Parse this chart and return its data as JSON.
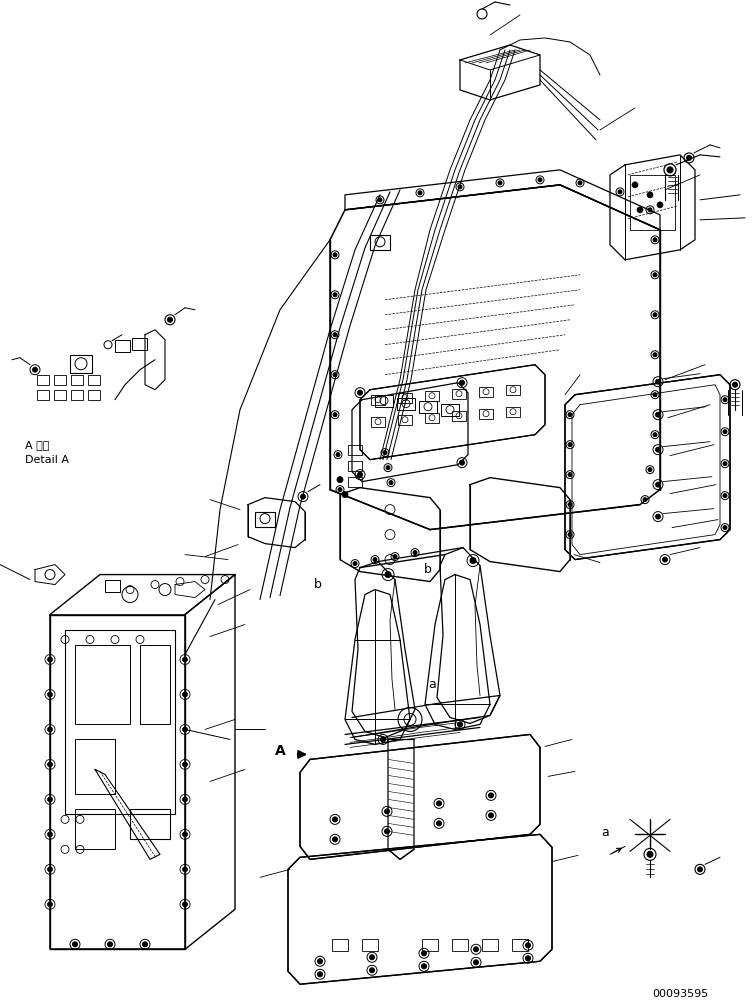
{
  "title": "",
  "background_color": "#ffffff",
  "figsize": [
    7.53,
    10.02
  ],
  "dpi": 100,
  "line_color": "#000000",
  "line_width": 0.7,
  "text_color": "#000000",
  "detail_label_ja": "A 詳細",
  "detail_label_en": "Detail A",
  "part_number": "00093595",
  "label_a": "a",
  "label_b": "b",
  "label_A": "A"
}
